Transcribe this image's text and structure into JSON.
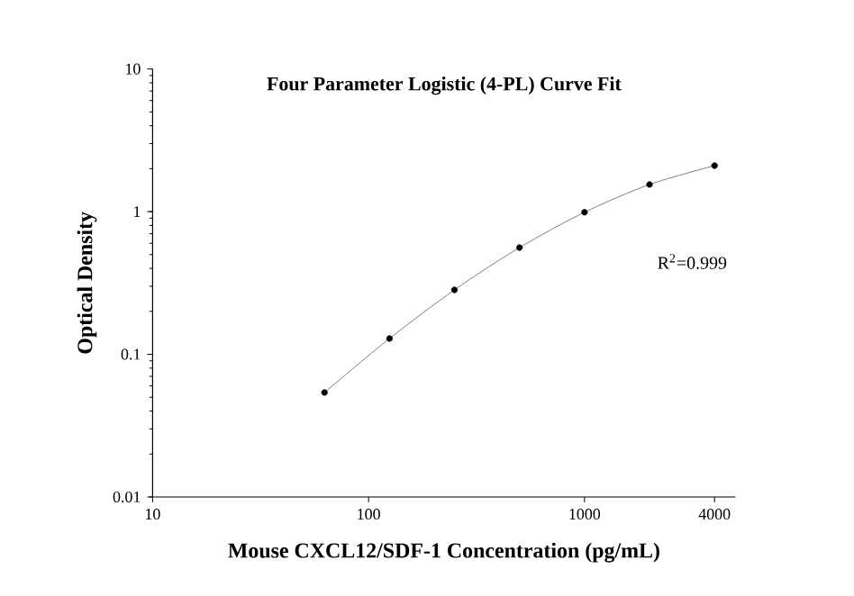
{
  "chart_data": {
    "type": "scatter",
    "title": "Four Parameter Logistic (4-PL) Curve Fit",
    "xlabel": "Mouse CXCL12/SDF-1 Concentration (pg/mL)",
    "ylabel": "Optical Density",
    "log": "xy",
    "xlim": [
      10,
      5000
    ],
    "ylim": [
      0.01,
      10
    ],
    "xticks": [
      10,
      100,
      1000,
      4000
    ],
    "yticks": [
      0.01,
      0.1,
      1,
      10
    ],
    "grid": false,
    "annotations": [
      "R$^{2}$=0.999"
    ],
    "series": [
      {
        "type": "line",
        "color": "#808080",
        "marker": "none",
        "x": [
          62.5,
          125,
          250,
          500,
          1000,
          2000,
          4000
        ],
        "values": [
          0.054,
          0.129,
          0.283,
          0.56,
          0.99,
          1.55,
          2.1
        ]
      },
      {
        "color": "#000000",
        "marker": "circle",
        "x": [
          62.5,
          125,
          250,
          500,
          1000,
          2000,
          4000
        ],
        "values": [
          0.054,
          0.129,
          0.283,
          0.56,
          0.99,
          1.55,
          2.1
        ]
      }
    ]
  }
}
